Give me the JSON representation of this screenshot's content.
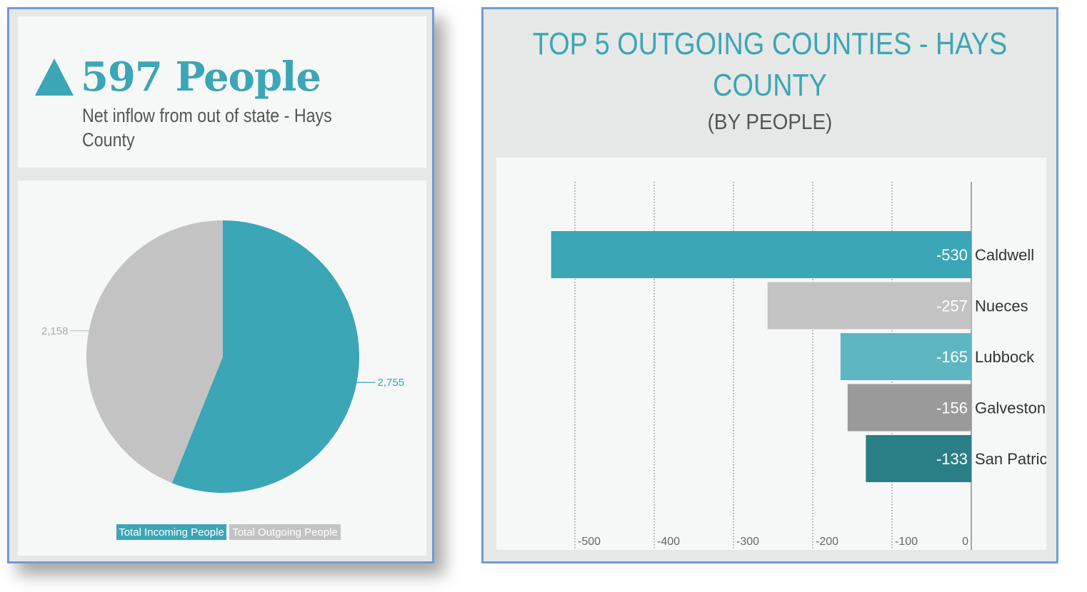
{
  "kpi": {
    "value": "597 People",
    "caption": "Net inflow from out of state - Hays County",
    "trend_icon": "up-triangle-icon",
    "color": "#3ba6b5"
  },
  "chart_data": [
    {
      "type": "pie",
      "title": "",
      "slices": [
        {
          "name": "Total Incoming People",
          "value": 2755,
          "label": "2,755",
          "color": "#3ba6b5"
        },
        {
          "name": "Total Outgoing People",
          "value": 2158,
          "label": "2,158",
          "color": "#c3c3c3"
        }
      ],
      "legend": [
        "Total Incoming People",
        "Total Outgoing People"
      ],
      "legend_position": "bottom"
    },
    {
      "type": "bar",
      "orientation": "horizontal",
      "title": "TOP 5 OUTGOING COUNTIES -  HAYS COUNTY",
      "subtitle": "(BY PEOPLE)",
      "categories": [
        "Caldwell",
        "Nueces",
        "Lubbock",
        "Galveston",
        "San Patricio"
      ],
      "values": [
        -530,
        -257,
        -165,
        -156,
        -133
      ],
      "value_labels": [
        "-530",
        "-257",
        "-165",
        "-156",
        "-133"
      ],
      "colors": [
        "#3ba6b5",
        "#c3c3c3",
        "#5db6c1",
        "#9a9a9a",
        "#2a7f87"
      ],
      "xlim": [
        -560,
        0
      ],
      "ticks": [
        -500,
        -400,
        -300,
        -200,
        -100,
        0
      ],
      "tick_labels": [
        "-500",
        "-400",
        "-300",
        "-200",
        "-100",
        "0"
      ],
      "grid": "vertical dotted"
    }
  ]
}
